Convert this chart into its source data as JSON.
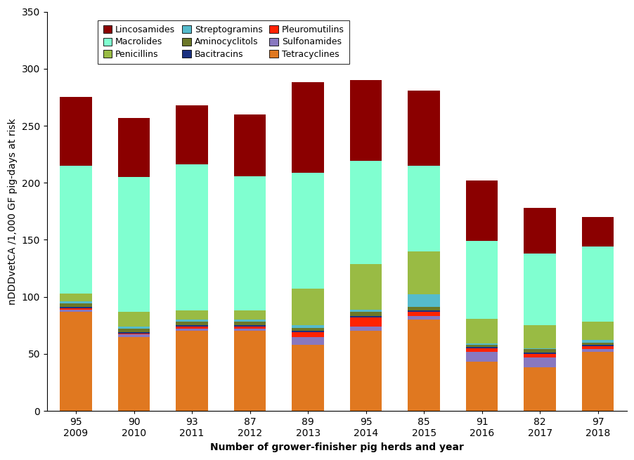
{
  "years": [
    "2009",
    "2010",
    "2011",
    "2012",
    "2013",
    "2014",
    "2015",
    "2016",
    "2017",
    "2018"
  ],
  "herds": [
    "95",
    "90",
    "93",
    "87",
    "89",
    "95",
    "85",
    "91",
    "82",
    "97"
  ],
  "categories": [
    "Tetracyclines",
    "Sulfonamides",
    "Pleuromutilins",
    "Bacitracins",
    "Aminocyclitols",
    "Streptogramins",
    "Penicillins",
    "Macrolides",
    "Lincosamides"
  ],
  "colors": [
    "#E07820",
    "#8878C0",
    "#FF2200",
    "#1A3080",
    "#6B7728",
    "#55BBCC",
    "#99BB44",
    "#80FFD0",
    "#8B0000"
  ],
  "data": {
    "Tetracyclines": [
      87,
      65,
      70,
      70,
      58,
      70,
      80,
      43,
      38,
      52
    ],
    "Sulfonamides": [
      2,
      2,
      2,
      2,
      7,
      4,
      3,
      9,
      9,
      2
    ],
    "Pleuromutilins": [
      1,
      1,
      2,
      2,
      4,
      8,
      4,
      3,
      3,
      3
    ],
    "Bacitracins": [
      1,
      1,
      1,
      1,
      1,
      1,
      1,
      1,
      1,
      1
    ],
    "Aminocyclitols": [
      3,
      3,
      3,
      3,
      3,
      4,
      3,
      2,
      3,
      2
    ],
    "Streptogramins": [
      2,
      2,
      2,
      2,
      2,
      2,
      11,
      1,
      1,
      2
    ],
    "Penicillins": [
      7,
      13,
      8,
      8,
      32,
      40,
      38,
      22,
      20,
      16
    ],
    "Macrolides": [
      112,
      118,
      128,
      118,
      102,
      90,
      75,
      68,
      63,
      66
    ],
    "Lincosamides": [
      60,
      52,
      52,
      54,
      79,
      71,
      66,
      53,
      40,
      26
    ]
  },
  "ylabel": "nDDDvetCA /1,000 GF pig-days at risk",
  "xlabel": "Number of grower-finisher pig herds and year",
  "ylim": [
    0,
    350
  ],
  "yticks": [
    0,
    50,
    100,
    150,
    200,
    250,
    300,
    350
  ],
  "axis_fontsize": 10,
  "legend_fontsize": 9,
  "background_color": "#ffffff"
}
